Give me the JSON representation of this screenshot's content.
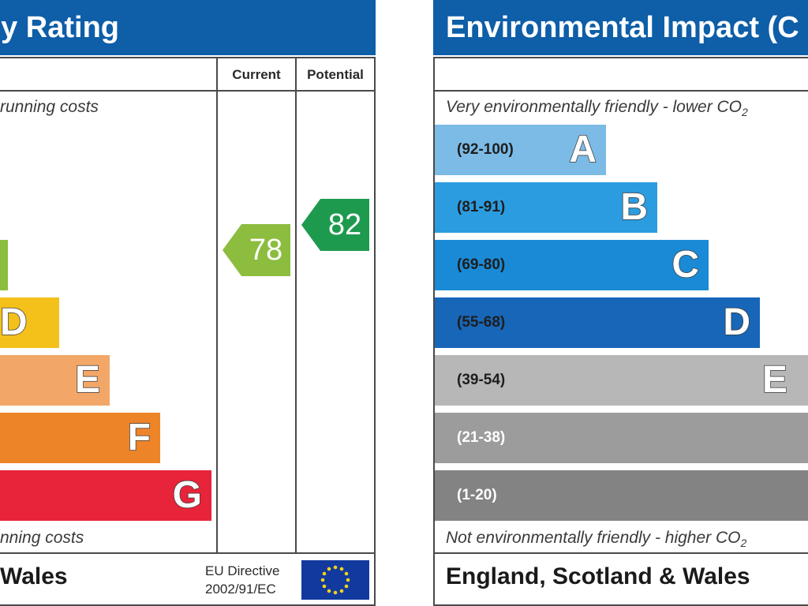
{
  "energy_rating": {
    "title": "y Rating",
    "col_current": "Current",
    "col_potential": "Potential",
    "note_top": "running costs",
    "note_bottom": "nning costs",
    "bands": [
      {
        "letter": "D",
        "color": "#f4c01a"
      },
      {
        "letter": "E",
        "color": "#f2a768"
      },
      {
        "letter": "F",
        "color": "#ee8428"
      },
      {
        "letter": "G",
        "color": "#e8243a"
      }
    ],
    "c_band_color": "#8cbd3f",
    "current_value": "78",
    "current_color": "#8cbd3f",
    "potential_value": "82",
    "potential_color": "#1e9a4e",
    "region": "Wales",
    "eu_directive_line1": "EU Directive",
    "eu_directive_line2": "2002/91/EC"
  },
  "environmental_impact": {
    "title": "Environmental Impact (C",
    "note_top": "Very environmentally friendly - lower CO",
    "note_top_sub": "2",
    "note_bottom": "Not environmentally friendly - higher CO",
    "note_bottom_sub": "2",
    "bands": [
      {
        "letter": "A",
        "range": "(92-100)",
        "color": "#7bbbe6"
      },
      {
        "letter": "B",
        "range": "(81-91)",
        "color": "#2b9ce0"
      },
      {
        "letter": "C",
        "range": "(69-80)",
        "color": "#1a8ad6"
      },
      {
        "letter": "D",
        "range": "(55-68)",
        "color": "#1766b8"
      },
      {
        "letter": "E",
        "range": "(39-54)",
        "color": "#b7b7b7"
      },
      {
        "letter": "",
        "range": "(21-38)",
        "color": "#9c9c9c"
      },
      {
        "letter": "",
        "range": "(1-20)",
        "color": "#838383"
      }
    ],
    "region": "England, Scotland & Wales"
  }
}
